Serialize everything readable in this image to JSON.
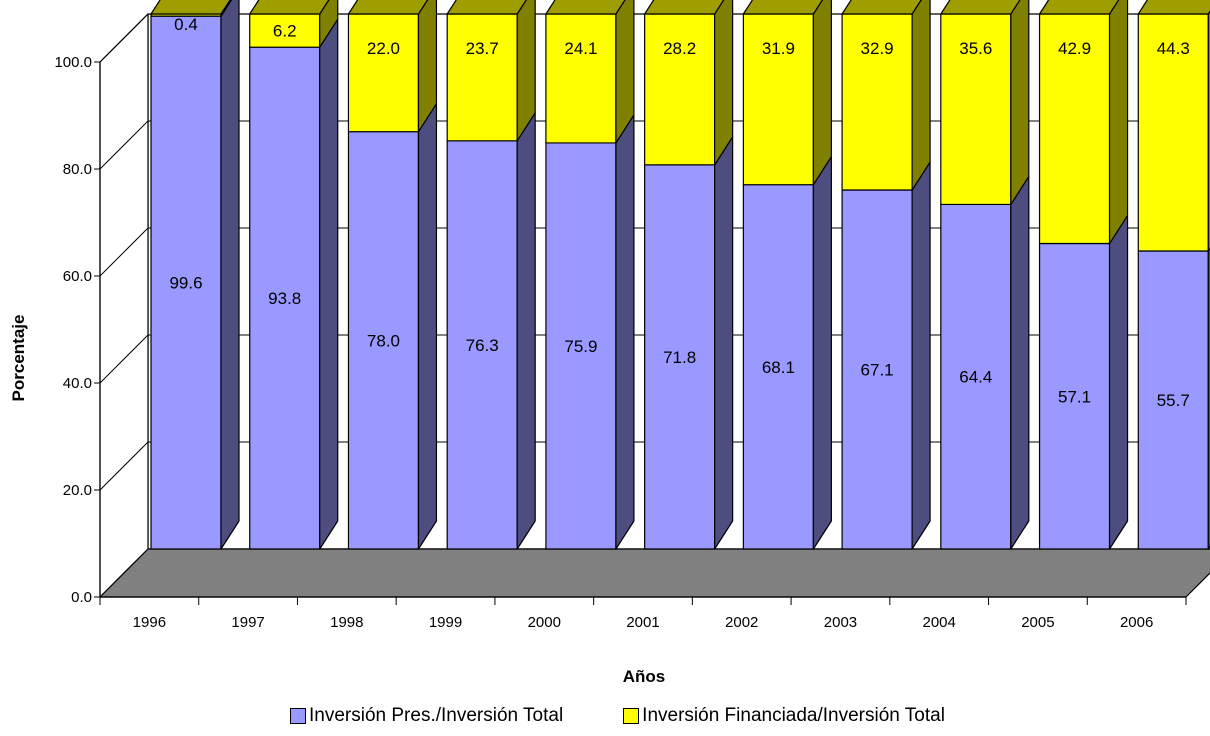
{
  "chart_data": {
    "type": "bar",
    "stacked": true,
    "three_d": true,
    "categories": [
      "1996",
      "1997",
      "1998",
      "1999",
      "2000",
      "2001",
      "2002",
      "2003",
      "2004",
      "2005",
      "2006"
    ],
    "series": [
      {
        "name": "Inversión Pres./Inversión Total",
        "color": "#9999ff",
        "values": [
          99.6,
          93.8,
          78.0,
          76.3,
          75.9,
          71.8,
          68.1,
          67.1,
          64.4,
          57.1,
          55.7
        ],
        "labels": [
          "99.6",
          "93.8",
          "78.0",
          "76.3",
          "75.9",
          "71.8",
          "68.1",
          "67.1",
          "64.4",
          "57.1",
          "55.7"
        ]
      },
      {
        "name": "Inversión Financiada/Inversión Total",
        "color": "#ffff00",
        "values": [
          0.4,
          6.2,
          22.0,
          23.7,
          24.1,
          28.2,
          31.9,
          32.9,
          35.6,
          42.9,
          44.3
        ],
        "labels": [
          "0.4",
          "6.2",
          "22.0",
          "23.7",
          "24.1",
          "28.2",
          "31.9",
          "32.9",
          "35.6",
          "42.9",
          "44.3"
        ]
      }
    ],
    "xlabel": "Años",
    "ylabel": "Porcentaje",
    "ylim": [
      0,
      100
    ],
    "yticks": [
      "0.0",
      "20.0",
      "40.0",
      "60.0",
      "80.0",
      "100.0"
    ],
    "grid": true,
    "legend_position": "bottom"
  }
}
